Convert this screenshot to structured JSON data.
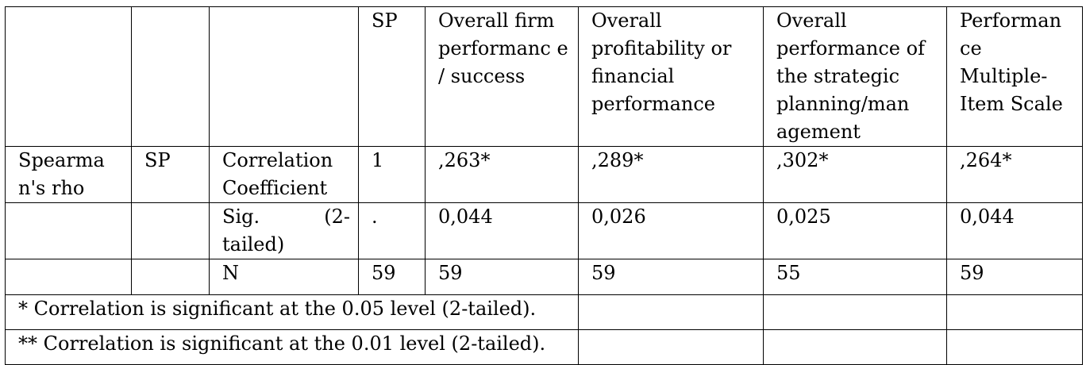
{
  "header": {
    "col1": "",
    "col2": "",
    "col3": "",
    "sp": "SP",
    "overall_firm": "Overall firm performanc e / success",
    "overall_profitability": "Overall profitability or financial performance",
    "overall_strategic": "Overall performance of the strategic planning/man agement",
    "performance_scale": "Performan ce Multiple-Item Scale"
  },
  "rows": {
    "corr": {
      "test": "Spearma n's rho",
      "var": "SP",
      "stat": "Correlation Coefficient",
      "values": [
        ",263*",
        ",289*",
        ",302*",
        ",264*"
      ],
      "sp": "1"
    },
    "sig": {
      "stat_part1": "Sig.        (2-",
      "stat_part2": "tailed)",
      "sp": ".",
      "values": [
        "0,044",
        "0,026",
        "0,025",
        "0,044"
      ]
    },
    "n": {
      "stat": "N",
      "sp": "59",
      "values": [
        "59",
        "59",
        "55",
        "59"
      ]
    }
  },
  "notes": {
    "note1": "* Correlation is significant at the 0.05 level (2-tailed).",
    "note2": "** Correlation is significant at the 0.01 level (2-tailed)."
  }
}
